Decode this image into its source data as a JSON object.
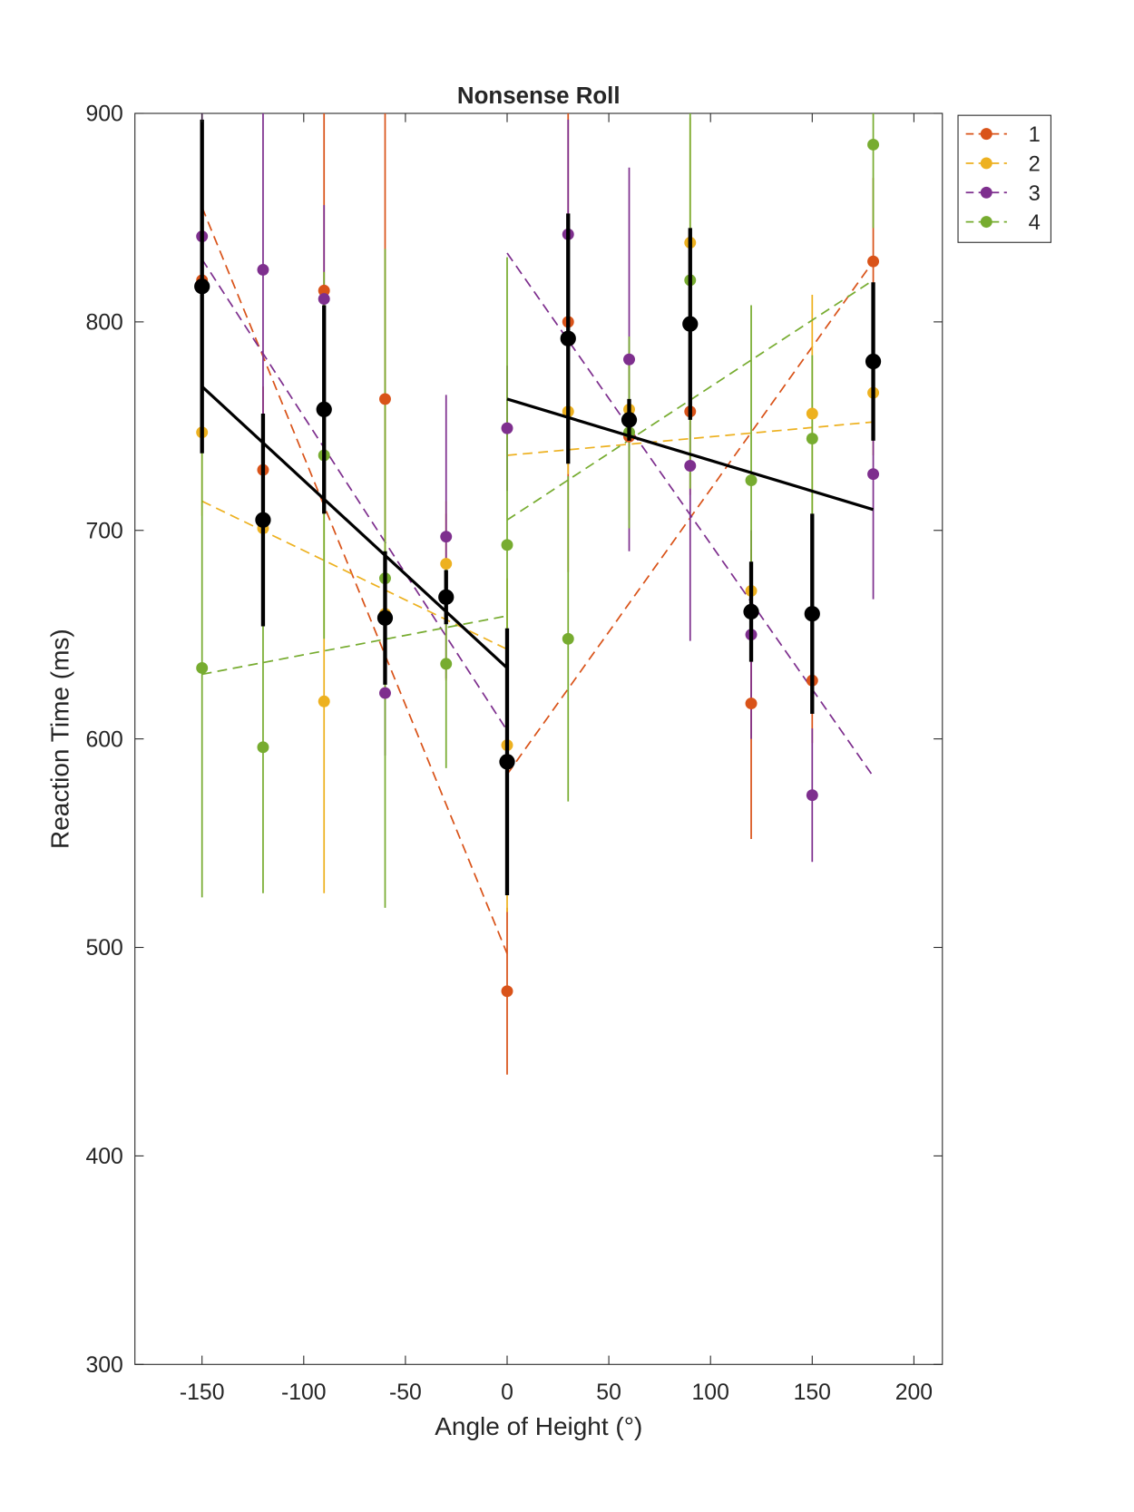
{
  "chart_data": {
    "type": "errorbar",
    "title": "Nonsense Roll",
    "xlabel": "Angle of Height (°)",
    "ylabel": "Reaction Time (ms)",
    "x": [
      -150,
      -120,
      -90,
      -60,
      -30,
      0,
      30,
      60,
      90,
      120,
      150,
      180
    ],
    "xlim": [
      -183,
      214
    ],
    "xticks": [
      -150,
      -100,
      -50,
      0,
      50,
      100,
      150,
      200
    ],
    "ylim": [
      300,
      900
    ],
    "yticks": [
      300,
      400,
      500,
      600,
      700,
      800,
      900
    ],
    "legend_location": "northeastoutside",
    "fit_x": [
      [
        -150,
        0
      ],
      [
        0,
        180
      ]
    ],
    "series": [
      {
        "name": "1",
        "color": "#D95319",
        "values": [
          820,
          729,
          815,
          763,
          668,
          479,
          800,
          745,
          757,
          617,
          628,
          829
        ],
        "errors": [
          60,
          40,
          100,
          140,
          40,
          40,
          120,
          40,
          40,
          65,
          30,
          40
        ],
        "fit": [
          [
            855,
            497
          ],
          [
            583,
            829
          ]
        ]
      },
      {
        "name": "2",
        "color": "#EDB120",
        "values": [
          747,
          701,
          618,
          660,
          684,
          597,
          757,
          758,
          838,
          671,
          756,
          766
        ],
        "errors": [
          40,
          30,
          92,
          40,
          30,
          80,
          30,
          20,
          60,
          20,
          57,
          30
        ],
        "fit": [
          [
            714,
            643
          ],
          [
            736,
            752
          ]
        ]
      },
      {
        "name": "3",
        "color": "#7E2F8E",
        "values": [
          841,
          825,
          811,
          622,
          697,
          749,
          842,
          782,
          731,
          650,
          573,
          727
        ],
        "errors": [
          90,
          100,
          45,
          30,
          68,
          30,
          55,
          92,
          84,
          50,
          32,
          60
        ],
        "fit": [
          [
            830,
            604
          ],
          [
            833,
            582
          ]
        ]
      },
      {
        "name": "4",
        "color": "#77AC30",
        "values": [
          634,
          596,
          736,
          677,
          636,
          693,
          648,
          747,
          820,
          724,
          744,
          885
        ],
        "errors": [
          110,
          70,
          88,
          158,
          50,
          138,
          78,
          46,
          100,
          84,
          40,
          40
        ],
        "fit": [
          [
            631,
            659
          ],
          [
            705,
            820
          ]
        ]
      }
    ],
    "mean": {
      "color": "#000000",
      "values": [
        817,
        705,
        758,
        658,
        668,
        589,
        792,
        753,
        799,
        661,
        660,
        781
      ],
      "errors": [
        80,
        51,
        50,
        32,
        13,
        64,
        60,
        10,
        46,
        24,
        48,
        38
      ],
      "fit": [
        [
          769,
          634
        ],
        [
          763,
          710
        ]
      ]
    }
  }
}
